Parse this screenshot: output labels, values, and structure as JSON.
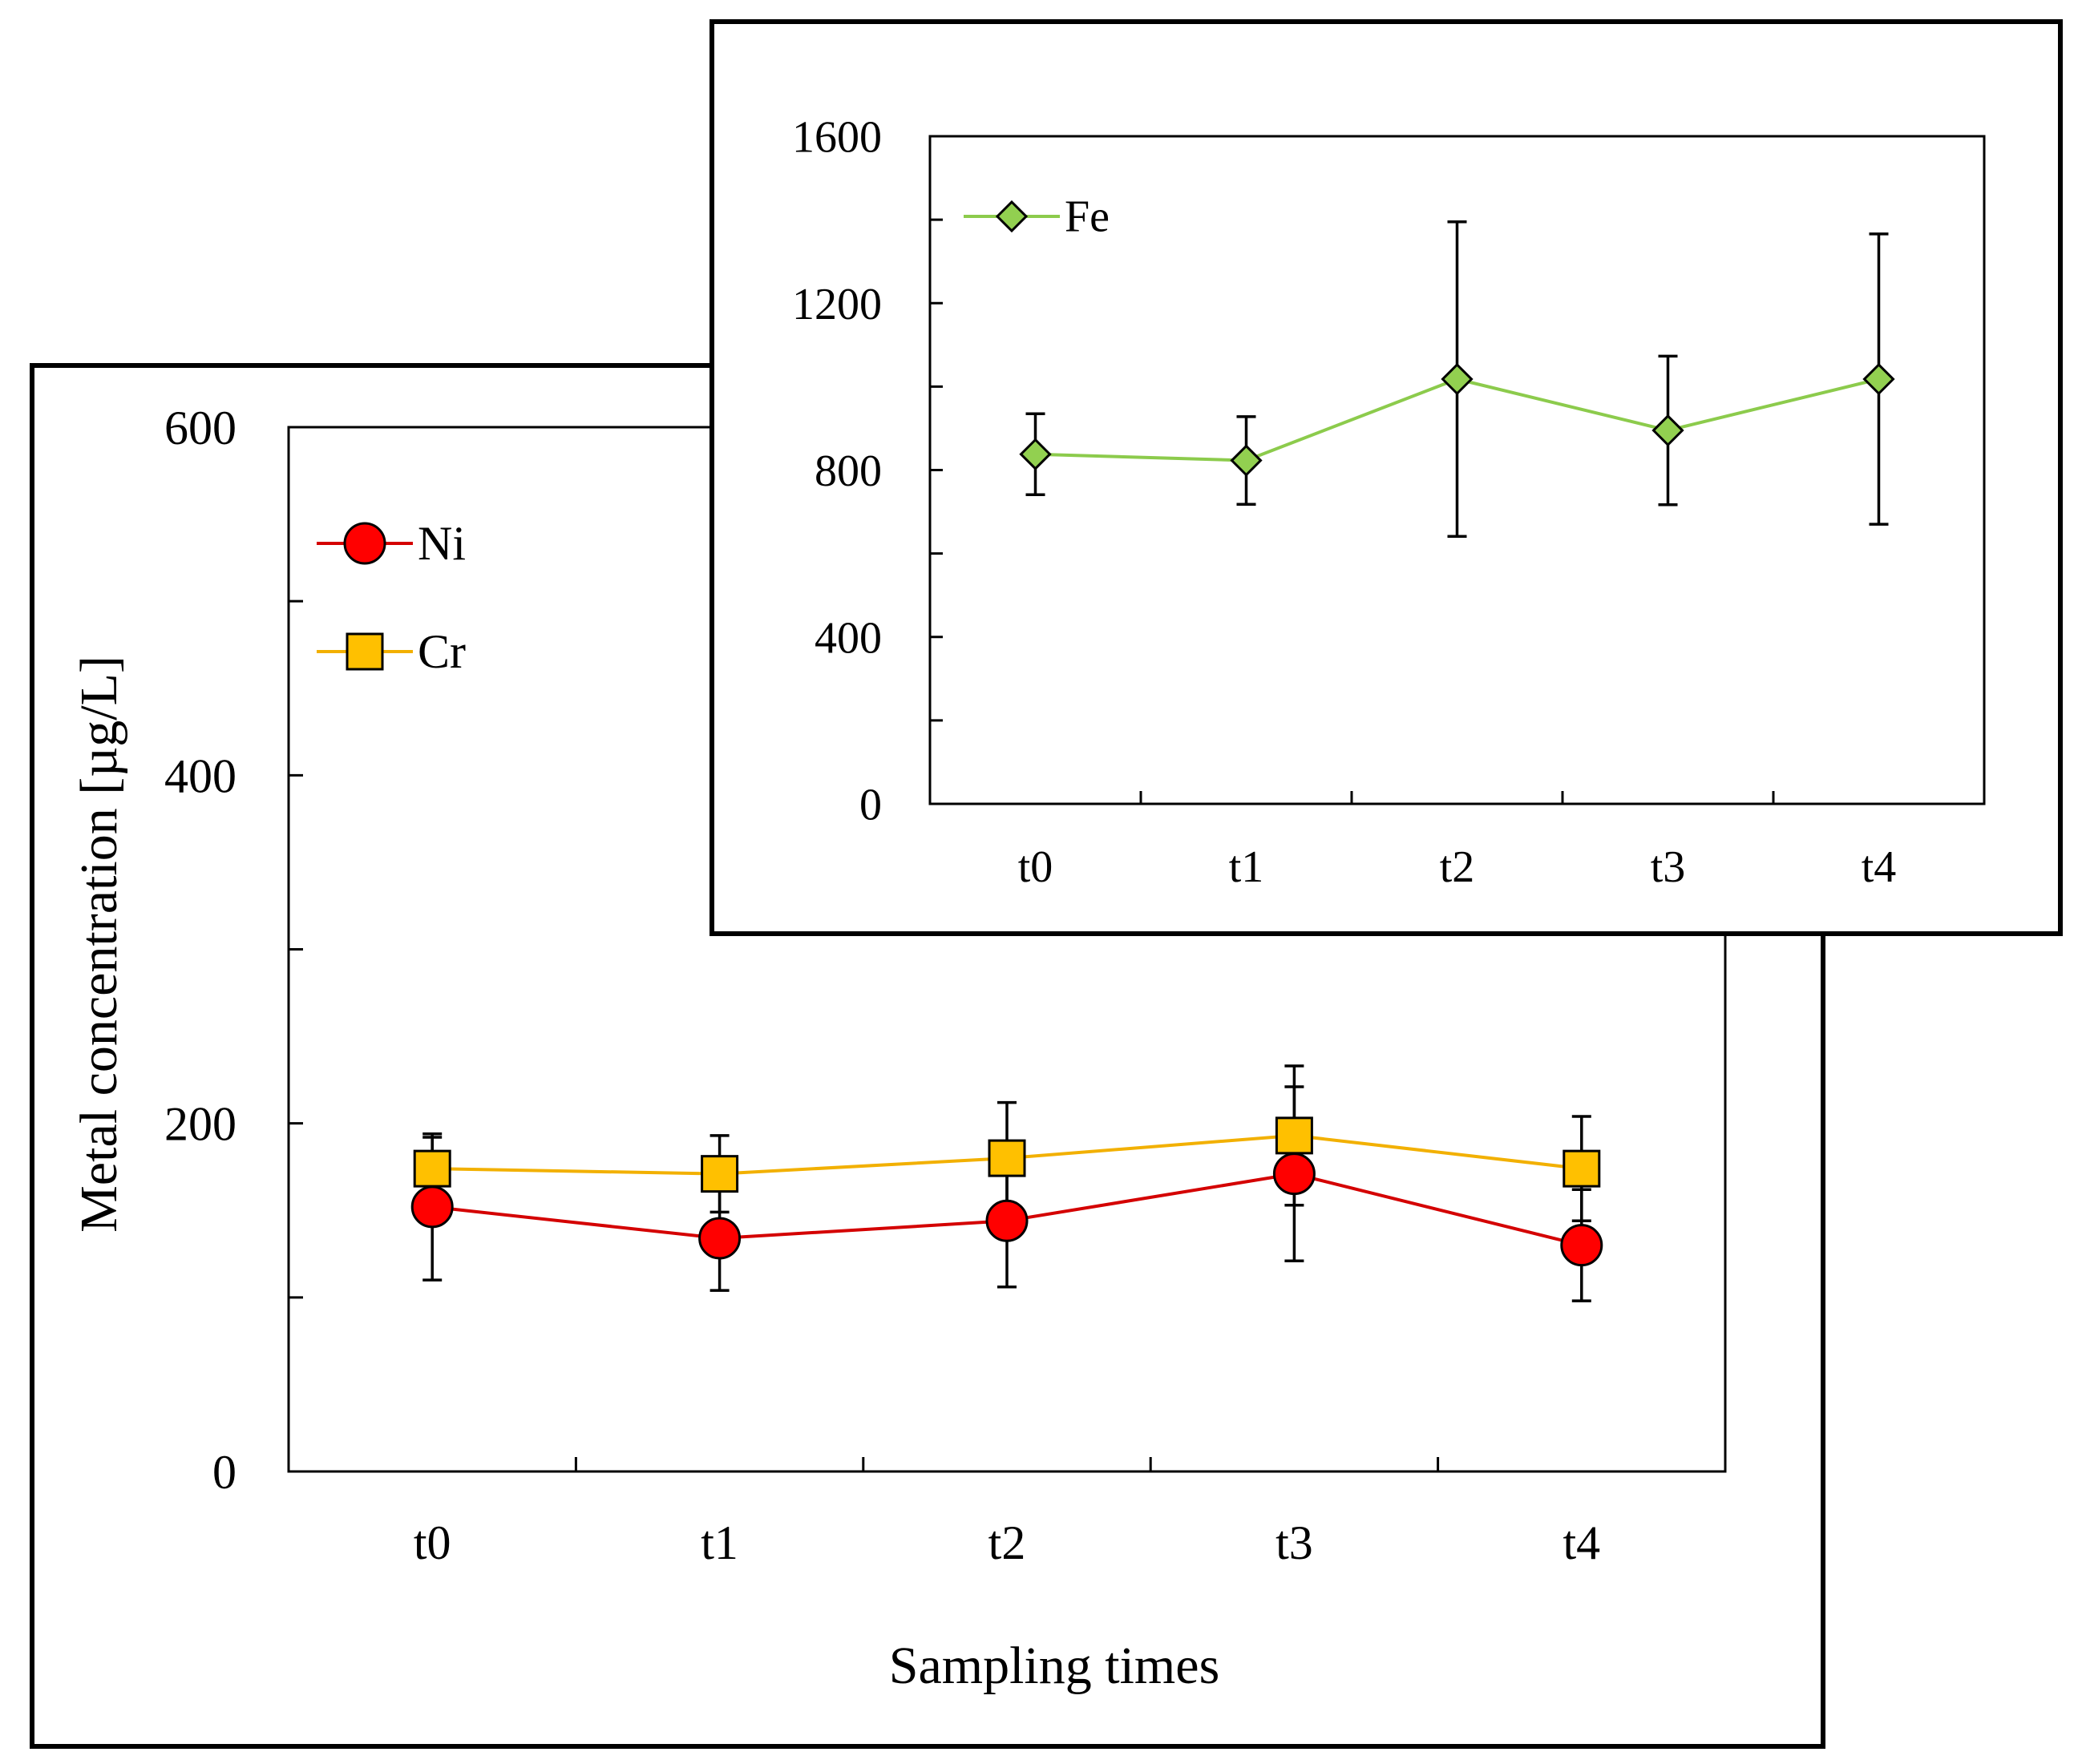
{
  "chart_data": [
    {
      "type": "line",
      "id": "main",
      "xlabel": "Sampling times",
      "ylabel": "Metal concentration [µg/L]",
      "categories": [
        "t0",
        "t1",
        "t2",
        "t3",
        "t4"
      ],
      "ylim": [
        0,
        600
      ],
      "yticks": [
        0,
        200,
        400,
        600
      ],
      "ytick_labels": [
        "0",
        "200",
        "400",
        "600"
      ],
      "legend_position": "top-left",
      "series": [
        {
          "name": "Cr",
          "marker": "square",
          "color": "#FFC000",
          "line_color": "#F2B000",
          "values": [
            174,
            171,
            180,
            193,
            174
          ],
          "errors": [
            18,
            22,
            32,
            40,
            30
          ]
        },
        {
          "name": "Ni",
          "marker": "circle",
          "color": "#FF0000",
          "line_color": "#D40000",
          "values": [
            152,
            134,
            144,
            171,
            130
          ],
          "errors": [
            42,
            30,
            38,
            50,
            32
          ]
        }
      ]
    },
    {
      "type": "line",
      "id": "inset",
      "categories": [
        "t0",
        "t1",
        "t2",
        "t3",
        "t4"
      ],
      "ylim": [
        0,
        1600
      ],
      "yticks": [
        0,
        400,
        800,
        1200,
        1600
      ],
      "ytick_labels": [
        "0",
        "400",
        "800",
        "1200",
        "1600"
      ],
      "legend_position": "top-left",
      "series": [
        {
          "name": "Fe",
          "marker": "diamond",
          "color": "#92D050",
          "line_color": "#8CCB4C",
          "values": [
            838,
            823,
            1018,
            895,
            1018
          ],
          "errors": [
            97,
            105,
            377,
            178,
            348
          ]
        }
      ]
    }
  ]
}
